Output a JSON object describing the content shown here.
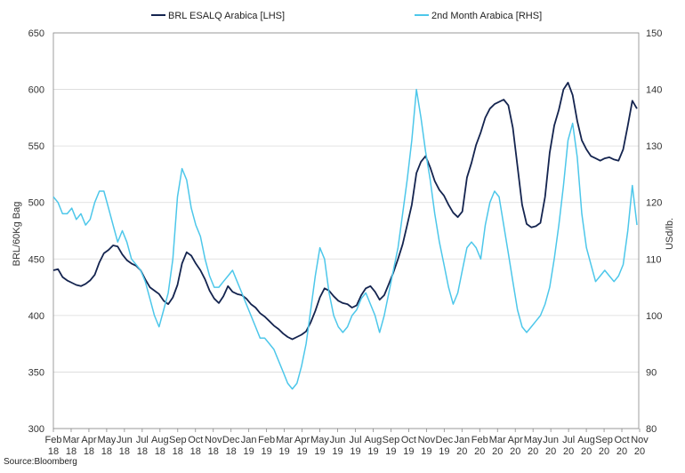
{
  "chart_data": {
    "type": "line",
    "title": "",
    "source": "Source:Bloomberg",
    "y_left": {
      "label": "BRL/60Kg Bag",
      "lim": [
        300,
        650
      ],
      "ticks": [
        300,
        350,
        400,
        450,
        500,
        550,
        600,
        650
      ]
    },
    "y_right": {
      "label": "USd/lb.",
      "lim": [
        80,
        150
      ],
      "ticks": [
        80,
        90,
        100,
        110,
        120,
        130,
        140,
        150
      ]
    },
    "x_ticks": [
      {
        "m": "Feb",
        "y": "18"
      },
      {
        "m": "Mar",
        "y": "18"
      },
      {
        "m": "Apr",
        "y": "18"
      },
      {
        "m": "May",
        "y": "18"
      },
      {
        "m": "Jun",
        "y": "18"
      },
      {
        "m": "Jul",
        "y": "18"
      },
      {
        "m": "Aug",
        "y": "18"
      },
      {
        "m": "Sep",
        "y": "18"
      },
      {
        "m": "Oct",
        "y": "18"
      },
      {
        "m": "Nov",
        "y": "18"
      },
      {
        "m": "Dec",
        "y": "18"
      },
      {
        "m": "Jan",
        "y": "19"
      },
      {
        "m": "Feb",
        "y": "19"
      },
      {
        "m": "Mar",
        "y": "19"
      },
      {
        "m": "Apr",
        "y": "19"
      },
      {
        "m": "May",
        "y": "19"
      },
      {
        "m": "Jun",
        "y": "19"
      },
      {
        "m": "Jul",
        "y": "19"
      },
      {
        "m": "Aug",
        "y": "19"
      },
      {
        "m": "Sep",
        "y": "19"
      },
      {
        "m": "Oct",
        "y": "19"
      },
      {
        "m": "Nov",
        "y": "19"
      },
      {
        "m": "Dec",
        "y": "19"
      },
      {
        "m": "Jan",
        "y": "20"
      },
      {
        "m": "Feb",
        "y": "20"
      },
      {
        "m": "Mar",
        "y": "20"
      },
      {
        "m": "Apr",
        "y": "20"
      },
      {
        "m": "May",
        "y": "20"
      },
      {
        "m": "Jun",
        "y": "20"
      },
      {
        "m": "Jul",
        "y": "20"
      },
      {
        "m": "Aug",
        "y": "20"
      },
      {
        "m": "Sep",
        "y": "20"
      },
      {
        "m": "Oct",
        "y": "20"
      },
      {
        "m": "Nov",
        "y": "20"
      }
    ],
    "grid": true,
    "legend_position": "top",
    "series": [
      {
        "name": "BRL ESALQ Arabica [LHS]",
        "axis": "left",
        "color": "#14244f",
        "values": [
          440,
          441,
          434,
          431,
          429,
          427,
          426,
          428,
          431,
          436,
          447,
          455,
          458,
          462,
          461,
          454,
          449,
          446,
          444,
          440,
          432,
          425,
          422,
          419,
          413,
          410,
          416,
          427,
          446,
          456,
          453,
          446,
          440,
          432,
          422,
          415,
          411,
          417,
          426,
          421,
          419,
          418,
          415,
          410,
          407,
          402,
          399,
          395,
          391,
          388,
          384,
          381,
          379,
          381,
          383,
          386,
          394,
          404,
          416,
          424,
          422,
          417,
          413,
          411,
          410,
          407,
          409,
          418,
          424,
          426,
          421,
          414,
          418,
          428,
          438,
          450,
          463,
          480,
          498,
          526,
          536,
          541,
          531,
          519,
          511,
          506,
          498,
          491,
          487,
          492,
          522,
          535,
          551,
          562,
          575,
          583,
          587,
          589,
          591,
          586,
          566,
          532,
          498,
          481,
          478,
          479,
          482,
          505,
          544,
          568,
          582,
          600,
          606,
          595,
          572,
          555,
          547,
          541,
          539,
          537,
          539,
          540,
          538,
          537,
          547,
          568,
          590,
          583
        ]
      },
      {
        "name": "2nd Month Arabica [RHS]",
        "axis": "right",
        "color": "#4dc7ea",
        "values": [
          121,
          120,
          118,
          118,
          119,
          117,
          118,
          116,
          117,
          120,
          122,
          122,
          119,
          116,
          113,
          115,
          113,
          110,
          109,
          108,
          106,
          103,
          100,
          98,
          101,
          104,
          110,
          121,
          126,
          124,
          119,
          116,
          114,
          110,
          107,
          105,
          105,
          106,
          107,
          108,
          106,
          104,
          102,
          100,
          98,
          96,
          96,
          95,
          94,
          92,
          90,
          88,
          87,
          88,
          91,
          95,
          101,
          107,
          112,
          110,
          104,
          100,
          98,
          97,
          98,
          100,
          101,
          103,
          104,
          102,
          100,
          97,
          100,
          104,
          108,
          112,
          118,
          124,
          131,
          140,
          135,
          129,
          124,
          118,
          113,
          109,
          105,
          102,
          104,
          108,
          112,
          113,
          112,
          110,
          116,
          120,
          122,
          121,
          116,
          111,
          106,
          101,
          98,
          97,
          98,
          99,
          100,
          102,
          105,
          110,
          116,
          123,
          131,
          134,
          128,
          118,
          112,
          109,
          106,
          107,
          108,
          107,
          106,
          107,
          109,
          115,
          123,
          116
        ]
      }
    ]
  }
}
